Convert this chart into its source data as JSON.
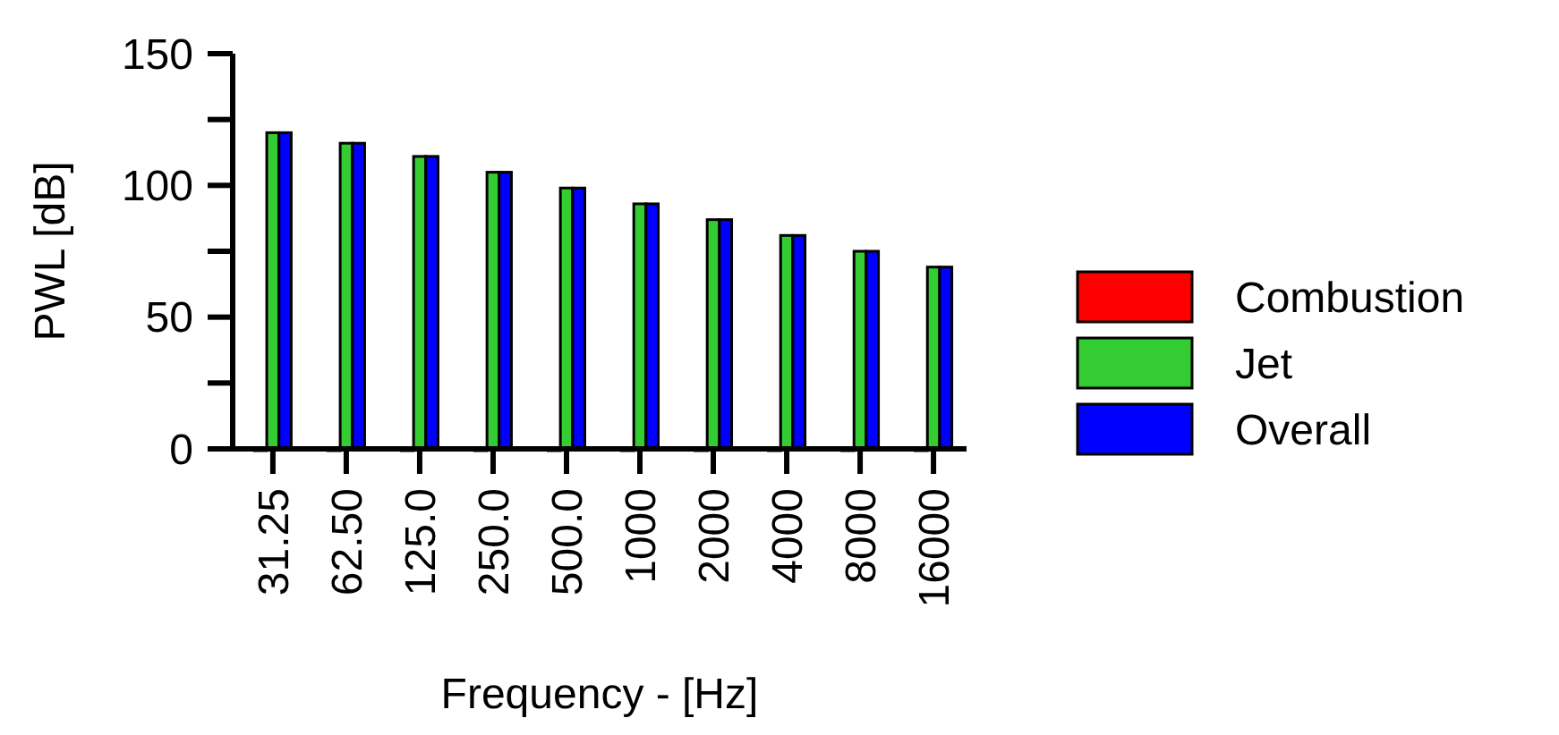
{
  "chart_data": {
    "type": "bar",
    "xlabel": "Frequency - [Hz]",
    "ylabel": "PWL [dB]",
    "categories": [
      "31.25",
      "62.50",
      "125.0",
      "250.0",
      "500.0",
      "1000",
      "2000",
      "4000",
      "8000",
      "16000"
    ],
    "series": [
      {
        "name": "Combustion",
        "color": "#ff0000",
        "values": [
          0,
          0,
          0,
          0,
          0,
          0,
          0,
          0,
          0,
          0
        ]
      },
      {
        "name": "Jet",
        "color": "#33cc33",
        "values": [
          120,
          116,
          111,
          105,
          99,
          93,
          87,
          81,
          75,
          69
        ]
      },
      {
        "name": "Overall",
        "color": "#0000ff",
        "values": [
          120,
          116,
          111,
          105,
          99,
          93,
          87,
          81,
          75,
          69
        ]
      }
    ],
    "ylim": [
      0,
      150
    ],
    "yticks": [
      0,
      {
        "value": 25,
        "label": null
      },
      50,
      {
        "value": 75,
        "label": null
      },
      100,
      {
        "value": 125,
        "label": null
      },
      150
    ],
    "grid": false,
    "legend": "right"
  }
}
